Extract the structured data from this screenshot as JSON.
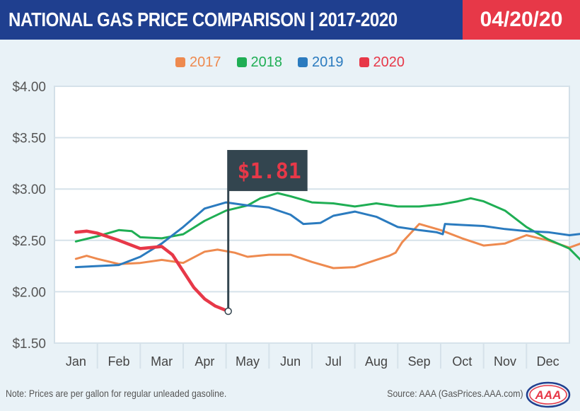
{
  "header": {
    "title": "NATIONAL GAS PRICE COMPARISON | 2017-2020",
    "date": "04/20/20"
  },
  "colors": {
    "header_bg": "#1f3f8f",
    "date_bg": "#e73848",
    "2017": "#ee8a4f",
    "2018": "#1fae54",
    "2019": "#2b7bbf",
    "2020": "#e73848",
    "callout_bg": "#33454f",
    "callout_text": "#e73848"
  },
  "chart_data": {
    "type": "line",
    "categories": [
      "Jan",
      "Feb",
      "Mar",
      "Apr",
      "May",
      "Jun",
      "Jul",
      "Aug",
      "Sep",
      "Oct",
      "Nov",
      "Dec"
    ],
    "y_ticks": [
      "$4.00",
      "$3.50",
      "$3.00",
      "$2.50",
      "$2.00",
      "$1.50"
    ],
    "ylim": [
      1.5,
      4.0
    ],
    "grid": true,
    "legend_position": "top-center",
    "series": [
      {
        "name": "2017",
        "color": "#ee8a4f",
        "x": [
          0,
          0.25,
          0.5,
          1.0,
          1.5,
          2.0,
          2.5,
          3.0,
          3.3,
          3.7,
          4.0,
          4.5,
          5.0,
          5.5,
          6.0,
          6.5,
          7.0,
          7.3,
          7.45,
          7.6,
          8.0,
          8.5,
          9.0,
          9.5,
          10.0,
          10.5,
          11.0,
          11.5,
          11.9
        ],
        "values": [
          2.32,
          2.35,
          2.32,
          2.27,
          2.28,
          2.31,
          2.28,
          2.39,
          2.41,
          2.38,
          2.34,
          2.36,
          2.36,
          2.29,
          2.23,
          2.24,
          2.31,
          2.35,
          2.38,
          2.48,
          2.66,
          2.6,
          2.52,
          2.45,
          2.47,
          2.55,
          2.5,
          2.43,
          2.49
        ]
      },
      {
        "name": "2018",
        "color": "#1fae54",
        "x": [
          0,
          0.5,
          1.0,
          1.3,
          1.5,
          2.0,
          2.5,
          3.0,
          3.5,
          4.0,
          4.3,
          4.7,
          5.0,
          5.5,
          6.0,
          6.5,
          7.0,
          7.5,
          8.0,
          8.5,
          8.9,
          9.2,
          9.5,
          10.0,
          10.5,
          11.0,
          11.5,
          11.9
        ],
        "values": [
          2.49,
          2.54,
          2.6,
          2.59,
          2.53,
          2.52,
          2.56,
          2.69,
          2.79,
          2.84,
          2.91,
          2.96,
          2.93,
          2.87,
          2.86,
          2.83,
          2.86,
          2.83,
          2.83,
          2.85,
          2.88,
          2.91,
          2.88,
          2.79,
          2.63,
          2.51,
          2.42,
          2.25
        ]
      },
      {
        "name": "2019",
        "color": "#2b7bbf",
        "x": [
          0,
          0.5,
          1.0,
          1.5,
          2.0,
          2.5,
          3.0,
          3.5,
          4.0,
          4.5,
          5.0,
          5.3,
          5.7,
          6.0,
          6.5,
          7.0,
          7.5,
          8.0,
          8.4,
          8.55,
          8.6,
          9.0,
          9.5,
          10.0,
          10.5,
          11.0,
          11.5,
          11.9
        ],
        "values": [
          2.24,
          2.25,
          2.26,
          2.34,
          2.47,
          2.63,
          2.81,
          2.87,
          2.84,
          2.82,
          2.75,
          2.66,
          2.67,
          2.74,
          2.78,
          2.73,
          2.63,
          2.6,
          2.58,
          2.56,
          2.66,
          2.65,
          2.64,
          2.61,
          2.59,
          2.58,
          2.55,
          2.57
        ]
      },
      {
        "name": "2020",
        "color": "#e73848",
        "x": [
          0,
          0.25,
          0.5,
          1.0,
          1.5,
          2.0,
          2.25,
          2.5,
          2.75,
          3.0,
          3.25,
          3.55
        ],
        "values": [
          2.58,
          2.59,
          2.57,
          2.5,
          2.42,
          2.44,
          2.36,
          2.2,
          2.04,
          1.93,
          1.86,
          1.81
        ]
      }
    ],
    "callout": {
      "label": "$1.81",
      "x": 3.55,
      "value": 1.81
    }
  },
  "footer": {
    "note": "Note: Prices are per gallon for regular unleaded gasoline.",
    "source": "Source: AAA (GasPrices.AAA.com)",
    "logo_text": "AAA"
  }
}
